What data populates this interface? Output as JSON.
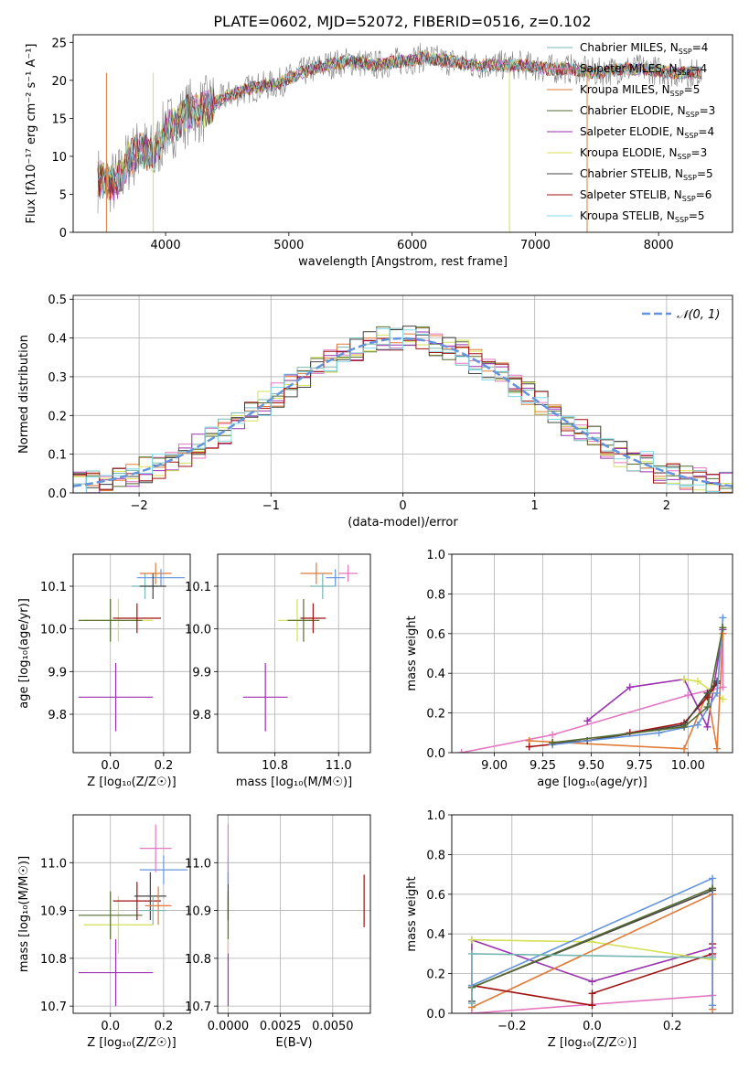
{
  "title": "PLATE=0602, MJD=52072, FIBERID=0516, z=0.102",
  "colors": {
    "chabrier_miles": "#76b7b2",
    "salpeter_miles": "#e377c2",
    "kroupa_miles": "#e07b39",
    "chabrier_elodie": "#556b2f",
    "salpeter_elodie": "#9b30b0",
    "kroupa_elodie": "#d4e157",
    "chabrier_stelib": "#444444",
    "salpeter_stelib": "#a01010",
    "kroupa_stelib": "#80d8e8",
    "gaussian": "#6495dc"
  },
  "chart_data": [
    {
      "id": "spectrum",
      "type": "line",
      "xlabel": "wavelength [Angstrom, rest frame]",
      "ylabel": "Flux [fλ10⁻¹⁷ erg cm⁻² s⁻¹ A⁻¹]",
      "xlim": [
        3250,
        8600
      ],
      "ylim": [
        0,
        26
      ],
      "xticks": [
        4000,
        5000,
        6000,
        7000,
        8000
      ],
      "yticks": [
        0,
        5,
        10,
        15,
        20,
        25
      ],
      "grid": false,
      "legend": "upper-right",
      "continuum": {
        "x": [
          3450,
          3600,
          3700,
          3800,
          3900,
          4000,
          4100,
          4200,
          4300,
          4500,
          4700,
          4900,
          5100,
          5300,
          5500,
          5700,
          5900,
          6100,
          6300,
          6500,
          6700,
          6900,
          7100,
          7300,
          7500,
          7700,
          7900,
          8100,
          8300
        ],
        "y": [
          7.0,
          6.5,
          9.5,
          11.0,
          10.0,
          13.5,
          14.5,
          16.0,
          16.0,
          18.0,
          19.0,
          19.5,
          21.0,
          22.0,
          22.5,
          22.0,
          22.5,
          23.0,
          22.5,
          22.0,
          22.0,
          22.0,
          21.5,
          21.5,
          21.0,
          21.5,
          21.5,
          21.0,
          21.0
        ]
      },
      "series": [
        {
          "name": "Chabrier MILES, N_SSP=4",
          "color_key": "chabrier_miles"
        },
        {
          "name": "Salpeter MILES, N_SSP=4",
          "color_key": "salpeter_miles"
        },
        {
          "name": "Kroupa MILES, N_SSP=5",
          "color_key": "kroupa_miles"
        },
        {
          "name": "Chabrier ELODIE, N_SSP=3",
          "color_key": "chabrier_elodie"
        },
        {
          "name": "Salpeter ELODIE, N_SSP=4",
          "color_key": "salpeter_elodie"
        },
        {
          "name": "Kroupa ELODIE, N_SSP=3",
          "color_key": "kroupa_elodie"
        },
        {
          "name": "Chabrier STELIB, N_SSP=5",
          "color_key": "chabrier_stelib"
        },
        {
          "name": "Salpeter STELIB, N_SSP=6",
          "color_key": "salpeter_stelib"
        },
        {
          "name": "Kroupa STELIB, N_SSP=5",
          "color_key": "kroupa_stelib"
        }
      ],
      "legend_labels": [
        {
          "main": "Chabrier MILES, N",
          "sub": "SSP",
          "tail": "=4"
        },
        {
          "main": "Salpeter MILES, N",
          "sub": "SSP",
          "tail": "=4"
        },
        {
          "main": "Kroupa MILES, N",
          "sub": "SSP",
          "tail": "=5"
        },
        {
          "main": "Chabrier ELODIE, N",
          "sub": "SSP",
          "tail": "=3"
        },
        {
          "main": "Salpeter ELODIE, N",
          "sub": "SSP",
          "tail": "=4"
        },
        {
          "main": "Kroupa ELODIE, N",
          "sub": "SSP",
          "tail": "=3"
        },
        {
          "main": "Chabrier STELIB, N",
          "sub": "SSP",
          "tail": "=5"
        },
        {
          "main": "Salpeter STELIB, N",
          "sub": "SSP",
          "tail": "=6"
        },
        {
          "main": "Kroupa STELIB, N",
          "sub": "SSP",
          "tail": "=5"
        }
      ]
    },
    {
      "id": "residuals",
      "type": "bar",
      "xlabel": "(data-model)/error",
      "ylabel": "Normed distribution",
      "xlim": [
        -2.5,
        2.5
      ],
      "ylim": [
        0,
        0.51
      ],
      "xticks": [
        -2,
        -1,
        0,
        1,
        2
      ],
      "xtick_labels": [
        "−2",
        "−1",
        "0",
        "1",
        "2"
      ],
      "yticks": [
        0.0,
        0.1,
        0.2,
        0.3,
        0.4,
        0.5
      ],
      "grid": true,
      "legend": "upper-right",
      "gaussian_label": "𝒩(0, 1)",
      "bin_width": 0.1
    },
    {
      "id": "z-age",
      "type": "scatter",
      "xlabel": "Z [log₁₀(Z/Z☉)]",
      "ylabel": "age  [log₁₀(age/yr)]",
      "xlim": [
        -0.14,
        0.3
      ],
      "ylim": [
        9.71,
        10.175
      ],
      "xticks": [
        0.0,
        0.2
      ],
      "yticks": [
        9.8,
        9.9,
        10.0,
        10.1
      ],
      "grid": true,
      "points": [
        {
          "x": 0.02,
          "y": 9.84,
          "xerr": 0.14,
          "yerr": 0.08,
          "color_key": "salpeter_elodie"
        },
        {
          "x": 0.03,
          "y": 10.02,
          "xerr": 0.13,
          "yerr": 0.05,
          "color_key": "kroupa_elodie"
        },
        {
          "x": 0.0,
          "y": 10.02,
          "xerr": 0.12,
          "yerr": 0.05,
          "color_key": "chabrier_elodie"
        },
        {
          "x": 0.1,
          "y": 10.025,
          "xerr": 0.09,
          "yerr": 0.035,
          "color_key": "salpeter_stelib"
        },
        {
          "x": 0.13,
          "y": 10.1,
          "xerr": 0.05,
          "yerr": 0.03,
          "color_key": "chabrier_miles"
        },
        {
          "x": 0.17,
          "y": 10.13,
          "xerr": 0.06,
          "yerr": 0.025,
          "color_key": "kroupa_miles"
        },
        {
          "x": 0.19,
          "y": 10.12,
          "xerr": 0.09,
          "yerr": 0.02,
          "color_key": "gaussian"
        },
        {
          "x": 0.16,
          "y": 10.1,
          "xerr": 0.05,
          "yerr": 0.03,
          "color_key": "chabrier_stelib"
        }
      ]
    },
    {
      "id": "mass-age",
      "type": "scatter",
      "xlabel": "mass [log₁₀(M/M☉)]",
      "ylabel": "",
      "xlim": [
        10.62,
        11.1
      ],
      "ylim": [
        9.71,
        10.175
      ],
      "xticks": [
        10.8,
        11.0
      ],
      "yticks": [
        9.8,
        9.9,
        10.0,
        10.1
      ],
      "grid": true,
      "points": [
        {
          "x": 10.77,
          "y": 9.84,
          "xerr": 0.07,
          "yerr": 0.08,
          "color_key": "salpeter_elodie"
        },
        {
          "x": 10.87,
          "y": 10.02,
          "xerr": 0.06,
          "yerr": 0.05,
          "color_key": "kroupa_elodie"
        },
        {
          "x": 10.89,
          "y": 10.02,
          "xerr": 0.05,
          "yerr": 0.05,
          "color_key": "chabrier_elodie"
        },
        {
          "x": 10.92,
          "y": 10.025,
          "xerr": 0.04,
          "yerr": 0.035,
          "color_key": "salpeter_stelib"
        },
        {
          "x": 10.93,
          "y": 10.13,
          "xerr": 0.05,
          "yerr": 0.025,
          "color_key": "kroupa_miles"
        },
        {
          "x": 10.99,
          "y": 10.12,
          "xerr": 0.03,
          "yerr": 0.02,
          "color_key": "gaussian"
        },
        {
          "x": 11.03,
          "y": 10.13,
          "xerr": 0.03,
          "yerr": 0.02,
          "color_key": "salpeter_miles"
        },
        {
          "x": 10.95,
          "y": 10.1,
          "xerr": 0.04,
          "yerr": 0.03,
          "color_key": "chabrier_miles"
        }
      ]
    },
    {
      "id": "age-weight",
      "type": "line",
      "xlabel": "age  [log₁₀(age/yr)]",
      "ylabel": "mass weight",
      "xlim": [
        8.78,
        10.23
      ],
      "ylim": [
        0,
        1.0
      ],
      "xticks": [
        9.0,
        9.25,
        9.5,
        9.75,
        10.0
      ],
      "xtick_labels": [
        "9.00",
        "9.25",
        "9.50",
        "9.75",
        "10.00"
      ],
      "yticks": [
        0.0,
        0.2,
        0.4,
        0.6,
        0.8,
        1.0
      ],
      "grid": true,
      "series": [
        {
          "color_key": "salpeter_miles",
          "x": [
            8.83,
            9.3,
            10.0,
            10.18,
            10.18
          ],
          "y": [
            0.0,
            0.09,
            0.29,
            0.33,
            0.6
          ]
        },
        {
          "color_key": "salpeter_elodie",
          "x": [
            9.48,
            9.7,
            9.98,
            10.1,
            10.18
          ],
          "y": [
            0.16,
            0.33,
            0.37,
            0.13,
            0.62
          ]
        },
        {
          "color_key": "kroupa_elodie",
          "x": [
            9.98,
            10.05,
            10.18
          ],
          "y": [
            0.37,
            0.36,
            0.27
          ]
        },
        {
          "color_key": "kroupa_miles",
          "x": [
            9.18,
            9.98,
            10.1,
            10.15,
            10.18
          ],
          "y": [
            0.06,
            0.02,
            0.3,
            0.02,
            0.6
          ]
        },
        {
          "color_key": "salpeter_stelib",
          "x": [
            9.18,
            9.48,
            9.7,
            9.98,
            10.1,
            10.15
          ],
          "y": [
            0.03,
            0.06,
            0.1,
            0.15,
            0.28,
            0.35
          ]
        },
        {
          "color_key": "chabrier_stelib",
          "x": [
            9.3,
            9.48,
            9.98,
            10.1,
            10.15
          ],
          "y": [
            0.05,
            0.06,
            0.14,
            0.3,
            0.36
          ]
        },
        {
          "color_key": "gaussian",
          "x": [
            9.3,
            9.85,
            10.05,
            10.15,
            10.18
          ],
          "y": [
            0.04,
            0.1,
            0.14,
            0.3,
            0.68
          ]
        },
        {
          "color_key": "chabrier_elodie",
          "x": [
            9.3,
            9.98,
            10.1,
            10.18
          ],
          "y": [
            0.05,
            0.13,
            0.23,
            0.63
          ]
        }
      ]
    },
    {
      "id": "z-mass",
      "type": "scatter",
      "xlabel": "Z [log₁₀(Z/Z☉)]",
      "ylabel": "mass [log₁₀(M/M☉)]",
      "xlim": [
        -0.14,
        0.3
      ],
      "ylim": [
        10.685,
        11.1
      ],
      "xticks": [
        0.0,
        0.2
      ],
      "yticks": [
        10.7,
        10.8,
        10.9,
        11.0
      ],
      "grid": true,
      "points": [
        {
          "x": 0.02,
          "y": 10.77,
          "xerr": 0.14,
          "yerr": 0.07,
          "color_key": "salpeter_elodie"
        },
        {
          "x": 0.03,
          "y": 10.87,
          "xerr": 0.13,
          "yerr": 0.06,
          "color_key": "kroupa_elodie"
        },
        {
          "x": 0.0,
          "y": 10.89,
          "xerr": 0.12,
          "yerr": 0.05,
          "color_key": "chabrier_elodie"
        },
        {
          "x": 0.1,
          "y": 10.92,
          "xerr": 0.09,
          "yerr": 0.04,
          "color_key": "salpeter_stelib"
        },
        {
          "x": 0.15,
          "y": 10.93,
          "xerr": 0.06,
          "yerr": 0.05,
          "color_key": "chabrier_stelib"
        },
        {
          "x": 0.18,
          "y": 10.91,
          "xerr": 0.05,
          "yerr": 0.04,
          "color_key": "kroupa_miles"
        },
        {
          "x": 0.2,
          "y": 10.985,
          "xerr": 0.09,
          "yerr": 0.03,
          "color_key": "gaussian"
        },
        {
          "x": 0.17,
          "y": 11.03,
          "xerr": 0.06,
          "yerr": 0.05,
          "color_key": "salpeter_miles"
        },
        {
          "x": 0.16,
          "y": 10.9,
          "xerr": 0.05,
          "yerr": 0.03,
          "color_key": "chabrier_miles"
        }
      ]
    },
    {
      "id": "ebv-mass",
      "type": "scatter",
      "xlabel": "E(B-V)",
      "ylabel": "",
      "xlim": [
        -0.0005,
        0.0068
      ],
      "ylim": [
        10.685,
        11.1
      ],
      "xticks": [
        0.0,
        0.0025,
        0.005
      ],
      "xtick_labels": [
        "0.0000",
        "0.0025",
        "0.0050"
      ],
      "yticks": [
        10.7,
        10.8,
        10.9,
        11.0
      ],
      "grid": true,
      "points": [
        {
          "x": 0.0,
          "y": 10.77,
          "xerr": 0,
          "yerr": 0.07,
          "color_key": "salpeter_elodie"
        },
        {
          "x": 0.0,
          "y": 10.87,
          "xerr": 0,
          "yerr": 0.06,
          "color_key": "kroupa_elodie"
        },
        {
          "x": 0.0,
          "y": 10.89,
          "xerr": 0,
          "yerr": 0.05,
          "color_key": "chabrier_elodie"
        },
        {
          "x": 0.0,
          "y": 10.93,
          "xerr": 0,
          "yerr": 0.05,
          "color_key": "chabrier_stelib"
        },
        {
          "x": 0.0,
          "y": 10.985,
          "xerr": 0,
          "yerr": 0.03,
          "color_key": "gaussian"
        },
        {
          "x": 0.0,
          "y": 11.03,
          "xerr": 0,
          "yerr": 0.05,
          "color_key": "salpeter_miles"
        },
        {
          "x": 0.0065,
          "y": 10.92,
          "xerr": 0,
          "yerr": 0.055,
          "color_key": "salpeter_stelib"
        }
      ]
    },
    {
      "id": "z-weight",
      "type": "line",
      "xlabel": "Z [log₁₀(Z/Z☉)]",
      "ylabel": "mass weight",
      "xlim": [
        -0.35,
        0.35
      ],
      "ylim": [
        0,
        1.0
      ],
      "xticks": [
        -0.2,
        0.0,
        0.2
      ],
      "xtick_labels": [
        "−0.2",
        "0.0",
        "0.2"
      ],
      "yticks": [
        0.0,
        0.2,
        0.4,
        0.6,
        0.8,
        1.0
      ],
      "grid": true,
      "series": [
        {
          "color_key": "salpeter_miles",
          "x": [
            -0.3,
            0.3,
            0.3,
            0.3
          ],
          "y": [
            0.0,
            0.09,
            0.29,
            0.6
          ]
        },
        {
          "color_key": "salpeter_elodie",
          "x": [
            -0.3,
            -0.3,
            0.0,
            0.3,
            0.3
          ],
          "y": [
            0.13,
            0.37,
            0.16,
            0.33,
            0.62
          ]
        },
        {
          "color_key": "kroupa_elodie",
          "x": [
            -0.3,
            0.0,
            0.3
          ],
          "y": [
            0.37,
            0.36,
            0.27
          ]
        },
        {
          "color_key": "kroupa_miles",
          "x": [
            -0.3,
            0.3,
            0.3
          ],
          "y": [
            0.03,
            0.6,
            0.02
          ]
        },
        {
          "color_key": "salpeter_stelib",
          "x": [
            -0.3,
            0.0,
            0.0,
            0.3,
            0.3
          ],
          "y": [
            0.14,
            0.04,
            0.1,
            0.3,
            0.35
          ]
        },
        {
          "color_key": "chabrier_stelib",
          "x": [
            -0.3,
            -0.3,
            0.3
          ],
          "y": [
            0.06,
            0.13,
            0.62
          ]
        },
        {
          "color_key": "gaussian",
          "x": [
            -0.3,
            0.3,
            0.3
          ],
          "y": [
            0.14,
            0.68,
            0.04
          ]
        },
        {
          "color_key": "chabrier_elodie",
          "x": [
            -0.3,
            0.3
          ],
          "y": [
            0.13,
            0.63
          ]
        },
        {
          "color_key": "chabrier_miles",
          "x": [
            -0.3,
            -0.3,
            0.3
          ],
          "y": [
            0.05,
            0.3,
            0.28
          ]
        }
      ]
    }
  ]
}
